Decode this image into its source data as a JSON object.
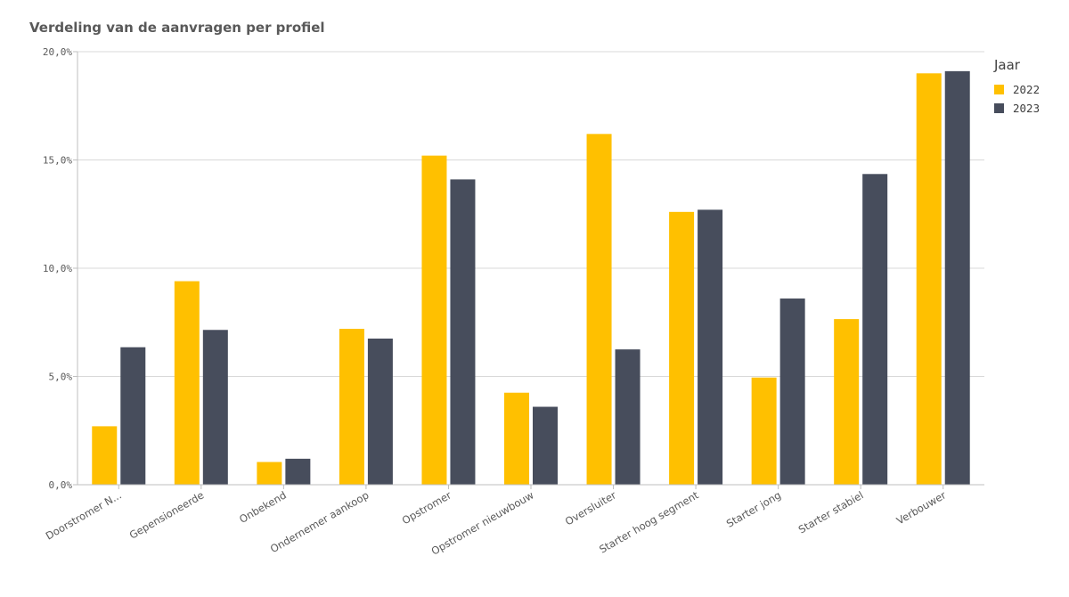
{
  "chart_data": {
    "type": "bar",
    "title": "Verdeling van de aanvragen per profiel",
    "categories": [
      "Doorstromer N...",
      "Gepensioneerde",
      "Onbekend",
      "Ondernemer aankoop",
      "Opstromer",
      "Opstromer nieuwbouw",
      "Oversluiter",
      "Starter hoog segment",
      "Starter jong",
      "Starter stabiel",
      "Verbouwer"
    ],
    "series": [
      {
        "name": "2022",
        "color": "#FFC000",
        "values": [
          2.7,
          9.4,
          1.05,
          7.2,
          15.2,
          4.25,
          16.2,
          12.6,
          4.95,
          7.65,
          19.0
        ]
      },
      {
        "name": "2023",
        "color": "#474D5C",
        "values": [
          6.35,
          7.15,
          1.2,
          6.75,
          14.1,
          3.6,
          6.25,
          12.7,
          8.6,
          14.35,
          19.1
        ]
      }
    ],
    "yticks": [
      "0,0%",
      "5,0%",
      "10,0%",
      "15,0%",
      "20,0%"
    ],
    "ylim": [
      0,
      20
    ],
    "xlabel": "",
    "ylabel": "",
    "grid": true,
    "legend": {
      "title": "Jaar",
      "placement": "top-right"
    }
  }
}
